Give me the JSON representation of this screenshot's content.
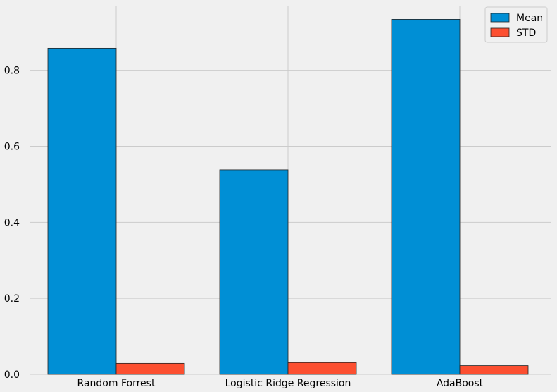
{
  "chart_data": {
    "type": "bar",
    "categories": [
      "Random Forrest",
      "Logistic Ridge Regression",
      "AdaBoost"
    ],
    "series": [
      {
        "name": "Mean",
        "values": [
          0.858,
          0.538,
          0.934
        ]
      },
      {
        "name": "STD",
        "values": [
          0.029,
          0.031,
          0.023
        ]
      }
    ],
    "title": "",
    "xlabel": "",
    "ylabel": "",
    "ylim": [
      0,
      0.97
    ],
    "yticks": [
      "0.0",
      "0.2",
      "0.4",
      "0.6",
      "0.8"
    ],
    "ytick_values": [
      0,
      0.2,
      0.4,
      0.6,
      0.8
    ],
    "grid": true,
    "legend_position": "top-right",
    "colors": {
      "Mean": "#008fd5",
      "STD": "#fc4f30",
      "background": "#f0f0f0",
      "grid": "#cbcbcb",
      "edge": "#222222"
    }
  }
}
